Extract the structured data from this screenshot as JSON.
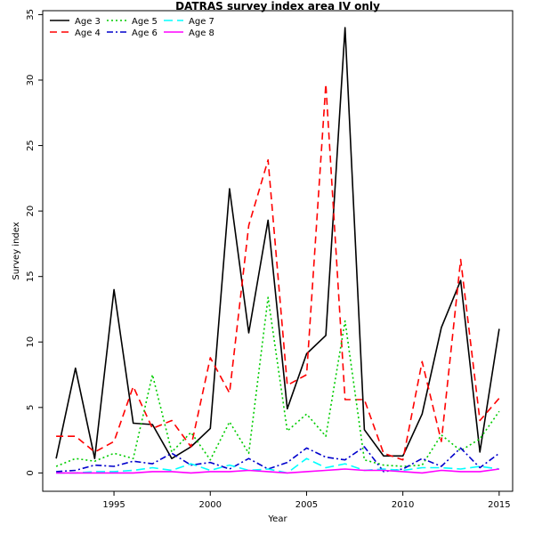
{
  "chart_data": {
    "type": "line",
    "title": "DATRAS survey index area IV only",
    "xlabel": "Year",
    "ylabel": "Survey index",
    "xlim": [
      1991.3,
      2015.7
    ],
    "ylim": [
      -1.4,
      35.3
    ],
    "xticks": [
      1995,
      2000,
      2005,
      2010,
      2015
    ],
    "yticks": [
      0,
      5,
      10,
      15,
      20,
      25,
      30,
      35
    ],
    "grid": false,
    "legend_position": "top-left",
    "x": [
      1992,
      1993,
      1994,
      1995,
      1996,
      1997,
      1998,
      1999,
      2000,
      2001,
      2002,
      2003,
      2004,
      2005,
      2006,
      2007,
      2008,
      2009,
      2010,
      2011,
      2012,
      2013,
      2014,
      2015
    ],
    "series": [
      {
        "name": "Age 3",
        "color": "#000000",
        "dash": "",
        "values": [
          1.1,
          8.0,
          1.1,
          14.0,
          3.8,
          3.7,
          1.1,
          2.0,
          3.4,
          21.7,
          10.7,
          19.3,
          4.9,
          9.1,
          10.5,
          34.0,
          3.3,
          1.3,
          1.3,
          4.5,
          11.1,
          14.7,
          1.6,
          11.0
        ]
      },
      {
        "name": "Age 4",
        "color": "#ff0000",
        "dash": "8,5",
        "values": [
          2.8,
          2.8,
          1.6,
          2.4,
          6.6,
          3.4,
          4.0,
          2.0,
          8.8,
          6.1,
          18.9,
          23.9,
          6.7,
          7.5,
          29.7,
          5.6,
          5.6,
          1.5,
          1.0,
          8.5,
          2.4,
          16.3,
          4.0,
          5.7
        ]
      },
      {
        "name": "Age 5",
        "color": "#00cc00",
        "dash": "2,3",
        "values": [
          0.5,
          1.1,
          0.9,
          1.5,
          1.1,
          7.5,
          1.6,
          3.1,
          1.0,
          3.9,
          1.5,
          13.4,
          3.2,
          4.5,
          2.8,
          11.6,
          1.0,
          0.6,
          0.5,
          0.6,
          2.9,
          1.7,
          2.6,
          4.7
        ]
      },
      {
        "name": "Age 6",
        "color": "#0000cc",
        "dash": "7,3,2,3",
        "values": [
          0.1,
          0.2,
          0.6,
          0.5,
          0.9,
          0.7,
          1.5,
          0.6,
          0.8,
          0.3,
          1.1,
          0.3,
          0.8,
          1.9,
          1.2,
          1.0,
          2.0,
          0.1,
          0.3,
          1.1,
          0.5,
          1.9,
          0.4,
          1.5
        ]
      },
      {
        "name": "Age 7",
        "color": "#00ffff",
        "dash": "10,5",
        "values": [
          0.0,
          0.0,
          0.1,
          0.1,
          0.2,
          0.4,
          0.2,
          0.7,
          0.2,
          0.6,
          0.2,
          0.3,
          0.0,
          1.1,
          0.4,
          0.7,
          0.2,
          0.3,
          0.2,
          0.4,
          0.4,
          0.3,
          0.5,
          0.3
        ]
      },
      {
        "name": "Age 8",
        "color": "#ff00ff",
        "dash": "",
        "values": [
          0.0,
          0.0,
          0.0,
          0.0,
          0.0,
          0.1,
          0.1,
          0.0,
          0.1,
          0.1,
          0.2,
          0.1,
          0.0,
          0.1,
          0.2,
          0.3,
          0.2,
          0.2,
          0.1,
          0.0,
          0.2,
          0.1,
          0.1,
          0.3
        ]
      }
    ]
  }
}
